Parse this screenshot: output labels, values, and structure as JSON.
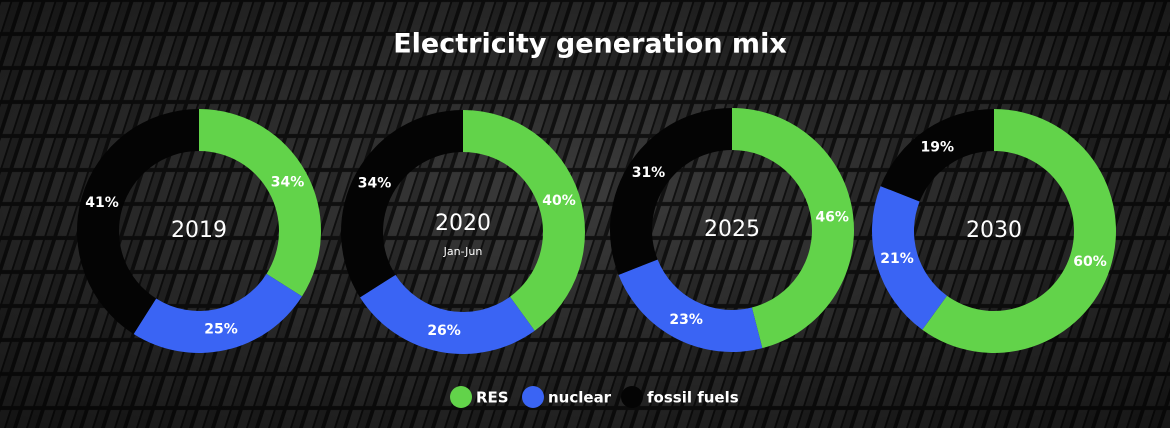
{
  "title": "Electricity generation mix",
  "chart_data": [
    {
      "type": "donut",
      "title": "2019",
      "categories": [
        "RES",
        "nuclear",
        "fossil fuels"
      ],
      "values": [
        34,
        25,
        41
      ],
      "value_labels": [
        "34%",
        "25%",
        "41%"
      ],
      "colors": [
        "#62d34a",
        "#3a64f4",
        "#040404"
      ]
    },
    {
      "type": "donut",
      "title": "2020",
      "subtitle": "Jan-Jun",
      "categories": [
        "RES",
        "nuclear",
        "fossil fuels"
      ],
      "values": [
        40,
        26,
        34
      ],
      "value_labels": [
        "40%",
        "26%",
        "34%"
      ],
      "colors": [
        "#62d34a",
        "#3a64f4",
        "#040404"
      ]
    },
    {
      "type": "donut",
      "title": "2025",
      "categories": [
        "RES",
        "nuclear",
        "fossil fuels"
      ],
      "values": [
        46,
        23,
        31
      ],
      "value_labels": [
        "46%",
        "23%",
        "31%"
      ],
      "colors": [
        "#62d34a",
        "#3a64f4",
        "#040404"
      ]
    },
    {
      "type": "donut",
      "title": "2030",
      "categories": [
        "RES",
        "nuclear",
        "fossil fuels"
      ],
      "values": [
        60,
        21,
        19
      ],
      "value_labels": [
        "60%",
        "21%",
        "19%"
      ],
      "colors": [
        "#62d34a",
        "#3a64f4",
        "#040404"
      ]
    }
  ]
}
